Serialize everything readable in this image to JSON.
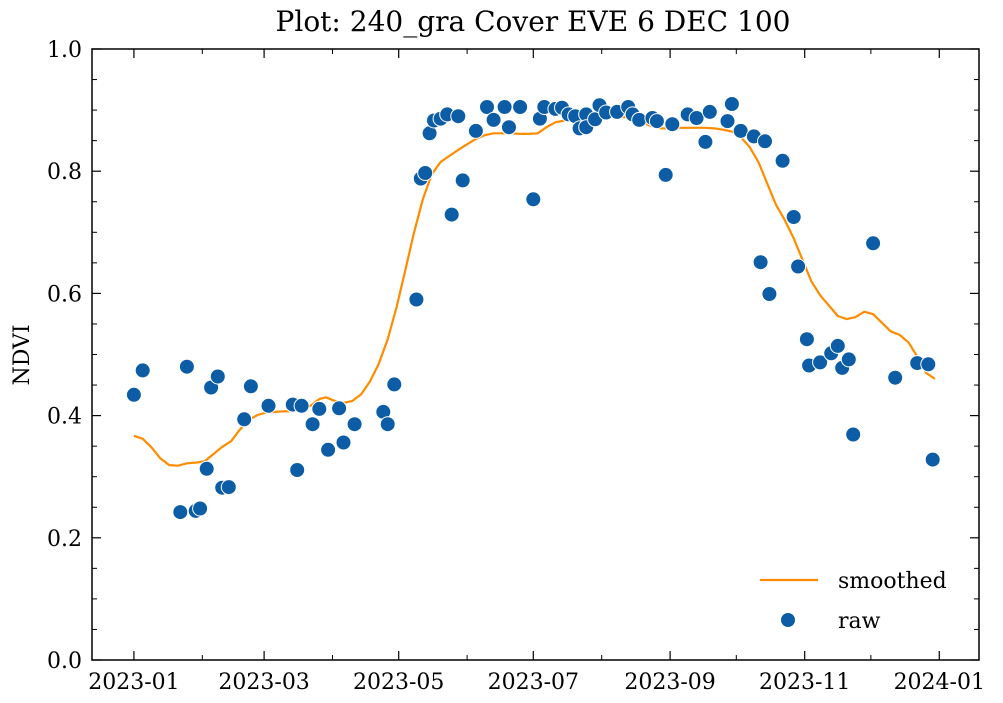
{
  "chart_data": {
    "type": "scatter",
    "title": "Plot: 240_gra Cover EVE 6 DEC 100",
    "xlabel": "",
    "ylabel": "NDVI",
    "x_type": "date",
    "xlim": [
      "2022-12-13",
      "2024-01-19"
    ],
    "ylim": [
      0.0,
      1.0
    ],
    "x_ticks": [
      "2023-01",
      "2023-03",
      "2023-05",
      "2023-07",
      "2023-09",
      "2023-11",
      "2024-01"
    ],
    "x_tick_dates": [
      "2023-01-01",
      "2023-03-01",
      "2023-05-01",
      "2023-07-01",
      "2023-09-01",
      "2023-11-01",
      "2024-01-01"
    ],
    "y_ticks": [
      "0.0",
      "0.2",
      "0.4",
      "0.6",
      "0.8",
      "1.0"
    ],
    "y_tick_values": [
      0.0,
      0.2,
      0.4,
      0.6,
      0.8,
      1.0
    ],
    "grid": false,
    "legend_position": "bottom-right",
    "colors": {
      "smoothed": "#ff8c00",
      "raw": "#0c5da5"
    },
    "series": [
      {
        "name": "smoothed",
        "kind": "line",
        "points": [
          [
            "2023-01-01",
            0.367
          ],
          [
            "2023-01-05",
            0.362
          ],
          [
            "2023-01-09",
            0.348
          ],
          [
            "2023-01-13",
            0.33
          ],
          [
            "2023-01-17",
            0.319
          ],
          [
            "2023-01-21",
            0.318
          ],
          [
            "2023-01-25",
            0.322
          ],
          [
            "2023-01-29",
            0.323
          ],
          [
            "2023-02-02",
            0.325
          ],
          [
            "2023-02-06",
            0.337
          ],
          [
            "2023-02-10",
            0.349
          ],
          [
            "2023-02-14",
            0.358
          ],
          [
            "2023-02-18",
            0.377
          ],
          [
            "2023-02-22",
            0.393
          ],
          [
            "2023-02-26",
            0.401
          ],
          [
            "2023-03-02",
            0.405
          ],
          [
            "2023-03-06",
            0.406
          ],
          [
            "2023-03-10",
            0.407
          ],
          [
            "2023-03-14",
            0.407
          ],
          [
            "2023-03-18",
            0.41
          ],
          [
            "2023-03-22",
            0.416
          ],
          [
            "2023-03-26",
            0.427
          ],
          [
            "2023-03-29",
            0.43
          ],
          [
            "2023-04-02",
            0.424
          ],
          [
            "2023-04-06",
            0.421
          ],
          [
            "2023-04-10",
            0.424
          ],
          [
            "2023-04-14",
            0.435
          ],
          [
            "2023-04-18",
            0.456
          ],
          [
            "2023-04-22",
            0.485
          ],
          [
            "2023-04-26",
            0.525
          ],
          [
            "2023-04-30",
            0.577
          ],
          [
            "2023-05-04",
            0.638
          ],
          [
            "2023-05-08",
            0.7
          ],
          [
            "2023-05-12",
            0.755
          ],
          [
            "2023-05-16",
            0.795
          ],
          [
            "2023-05-20",
            0.815
          ],
          [
            "2023-05-24",
            0.825
          ],
          [
            "2023-05-28",
            0.835
          ],
          [
            "2023-06-01",
            0.844
          ],
          [
            "2023-06-05",
            0.853
          ],
          [
            "2023-06-09",
            0.859
          ],
          [
            "2023-06-13",
            0.862
          ],
          [
            "2023-06-17",
            0.862
          ],
          [
            "2023-06-21",
            0.862
          ],
          [
            "2023-06-25",
            0.861
          ],
          [
            "2023-06-29",
            0.861
          ],
          [
            "2023-07-03",
            0.862
          ],
          [
            "2023-07-07",
            0.872
          ],
          [
            "2023-07-11",
            0.88
          ],
          [
            "2023-07-15",
            0.883
          ],
          [
            "2023-07-19",
            0.886
          ],
          [
            "2023-07-23",
            0.888
          ],
          [
            "2023-07-27",
            0.889
          ],
          [
            "2023-07-31",
            0.89
          ],
          [
            "2023-08-04",
            0.89
          ],
          [
            "2023-08-08",
            0.89
          ],
          [
            "2023-08-12",
            0.888
          ],
          [
            "2023-08-16",
            0.884
          ],
          [
            "2023-08-20",
            0.879
          ],
          [
            "2023-08-24",
            0.873
          ],
          [
            "2023-08-28",
            0.87
          ],
          [
            "2023-09-01",
            0.87
          ],
          [
            "2023-09-05",
            0.871
          ],
          [
            "2023-09-09",
            0.871
          ],
          [
            "2023-09-13",
            0.871
          ],
          [
            "2023-09-17",
            0.871
          ],
          [
            "2023-09-21",
            0.87
          ],
          [
            "2023-09-25",
            0.868
          ],
          [
            "2023-09-29",
            0.865
          ],
          [
            "2023-10-03",
            0.856
          ],
          [
            "2023-10-07",
            0.84
          ],
          [
            "2023-10-11",
            0.815
          ],
          [
            "2023-10-15",
            0.78
          ],
          [
            "2023-10-19",
            0.745
          ],
          [
            "2023-10-23",
            0.72
          ],
          [
            "2023-10-27",
            0.69
          ],
          [
            "2023-10-31",
            0.655
          ],
          [
            "2023-11-04",
            0.62
          ],
          [
            "2023-11-08",
            0.597
          ],
          [
            "2023-11-12",
            0.58
          ],
          [
            "2023-11-16",
            0.563
          ],
          [
            "2023-11-20",
            0.558
          ],
          [
            "2023-11-24",
            0.561
          ],
          [
            "2023-11-28",
            0.57
          ],
          [
            "2023-12-02",
            0.566
          ],
          [
            "2023-12-06",
            0.552
          ],
          [
            "2023-12-10",
            0.538
          ],
          [
            "2023-12-14",
            0.532
          ],
          [
            "2023-12-18",
            0.52
          ],
          [
            "2023-12-22",
            0.497
          ],
          [
            "2023-12-26",
            0.47
          ],
          [
            "2023-12-30",
            0.46
          ]
        ]
      },
      {
        "name": "raw",
        "kind": "scatter",
        "points": [
          [
            "2023-01-01",
            0.434
          ],
          [
            "2023-01-05",
            0.474
          ],
          [
            "2023-01-22",
            0.242
          ],
          [
            "2023-01-25",
            0.48
          ],
          [
            "2023-01-29",
            0.244
          ],
          [
            "2023-01-31",
            0.248
          ],
          [
            "2023-02-03",
            0.313
          ],
          [
            "2023-02-05",
            0.446
          ],
          [
            "2023-02-08",
            0.464
          ],
          [
            "2023-02-10",
            0.282
          ],
          [
            "2023-02-13",
            0.283
          ],
          [
            "2023-02-20",
            0.394
          ],
          [
            "2023-02-23",
            0.448
          ],
          [
            "2023-03-03",
            0.416
          ],
          [
            "2023-03-14",
            0.418
          ],
          [
            "2023-03-16",
            0.311
          ],
          [
            "2023-03-18",
            0.416
          ],
          [
            "2023-03-23",
            0.386
          ],
          [
            "2023-03-26",
            0.411
          ],
          [
            "2023-03-30",
            0.344
          ],
          [
            "2023-04-04",
            0.412
          ],
          [
            "2023-04-06",
            0.356
          ],
          [
            "2023-04-11",
            0.386
          ],
          [
            "2023-04-24",
            0.406
          ],
          [
            "2023-04-26",
            0.386
          ],
          [
            "2023-04-29",
            0.451
          ],
          [
            "2023-05-09",
            0.59
          ],
          [
            "2023-05-11",
            0.788
          ],
          [
            "2023-05-13",
            0.797
          ],
          [
            "2023-05-15",
            0.862
          ],
          [
            "2023-05-17",
            0.883
          ],
          [
            "2023-05-20",
            0.886
          ],
          [
            "2023-05-23",
            0.893
          ],
          [
            "2023-05-25",
            0.729
          ],
          [
            "2023-05-28",
            0.89
          ],
          [
            "2023-05-30",
            0.785
          ],
          [
            "2023-06-05",
            0.866
          ],
          [
            "2023-06-10",
            0.905
          ],
          [
            "2023-06-13",
            0.884
          ],
          [
            "2023-06-18",
            0.905
          ],
          [
            "2023-06-20",
            0.872
          ],
          [
            "2023-06-25",
            0.905
          ],
          [
            "2023-07-01",
            0.754
          ],
          [
            "2023-07-04",
            0.886
          ],
          [
            "2023-07-06",
            0.905
          ],
          [
            "2023-07-11",
            0.902
          ],
          [
            "2023-07-14",
            0.904
          ],
          [
            "2023-07-17",
            0.893
          ],
          [
            "2023-07-20",
            0.89
          ],
          [
            "2023-07-22",
            0.87
          ],
          [
            "2023-07-25",
            0.893
          ],
          [
            "2023-07-25",
            0.872
          ],
          [
            "2023-07-29",
            0.885
          ],
          [
            "2023-07-31",
            0.908
          ],
          [
            "2023-08-03",
            0.896
          ],
          [
            "2023-08-08",
            0.897
          ],
          [
            "2023-08-13",
            0.905
          ],
          [
            "2023-08-15",
            0.893
          ],
          [
            "2023-08-18",
            0.884
          ],
          [
            "2023-08-24",
            0.887
          ],
          [
            "2023-08-26",
            0.882
          ],
          [
            "2023-08-30",
            0.794
          ],
          [
            "2023-09-02",
            0.877
          ],
          [
            "2023-09-09",
            0.893
          ],
          [
            "2023-09-13",
            0.887
          ],
          [
            "2023-09-17",
            0.848
          ],
          [
            "2023-09-19",
            0.897
          ],
          [
            "2023-09-27",
            0.882
          ],
          [
            "2023-09-29",
            0.91
          ],
          [
            "2023-10-03",
            0.866
          ],
          [
            "2023-10-09",
            0.857
          ],
          [
            "2023-10-12",
            0.651
          ],
          [
            "2023-10-14",
            0.849
          ],
          [
            "2023-10-16",
            0.599
          ],
          [
            "2023-10-22",
            0.817
          ],
          [
            "2023-10-27",
            0.725
          ],
          [
            "2023-10-29",
            0.644
          ],
          [
            "2023-11-02",
            0.525
          ],
          [
            "2023-11-03",
            0.482
          ],
          [
            "2023-11-08",
            0.487
          ],
          [
            "2023-11-13",
            0.502
          ],
          [
            "2023-11-16",
            0.514
          ],
          [
            "2023-11-18",
            0.478
          ],
          [
            "2023-11-21",
            0.492
          ],
          [
            "2023-11-23",
            0.369
          ],
          [
            "2023-12-02",
            0.682
          ],
          [
            "2023-12-12",
            0.462
          ],
          [
            "2023-12-22",
            0.486
          ],
          [
            "2023-12-27",
            0.484
          ],
          [
            "2023-12-29",
            0.328
          ]
        ]
      }
    ]
  }
}
